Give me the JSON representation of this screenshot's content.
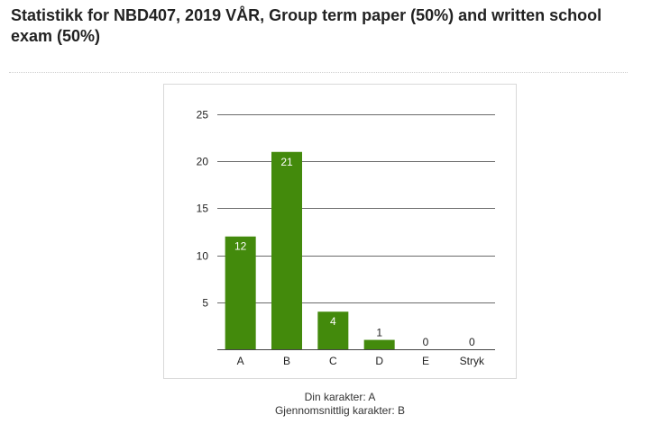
{
  "header": {
    "title": "Statistikk for NBD407, 2019 VÅR, Group term paper (50%) and written school exam (50%)"
  },
  "chart_data": {
    "type": "bar",
    "title": "",
    "xlabel": "",
    "ylabel": "",
    "categories": [
      "A",
      "B",
      "C",
      "D",
      "E",
      "Stryk"
    ],
    "values": [
      12,
      21,
      4,
      1,
      0,
      0
    ],
    "ylim": [
      0,
      25
    ],
    "yticks": [
      5,
      10,
      15,
      20,
      25
    ],
    "grid": true,
    "legend": "none",
    "bar_color": "#438a0c",
    "gridline_color": "#6b6b6b"
  },
  "summary": {
    "your_grade": "Din karakter: A",
    "average_grade": "Gjennomsnittlig karakter: B"
  }
}
